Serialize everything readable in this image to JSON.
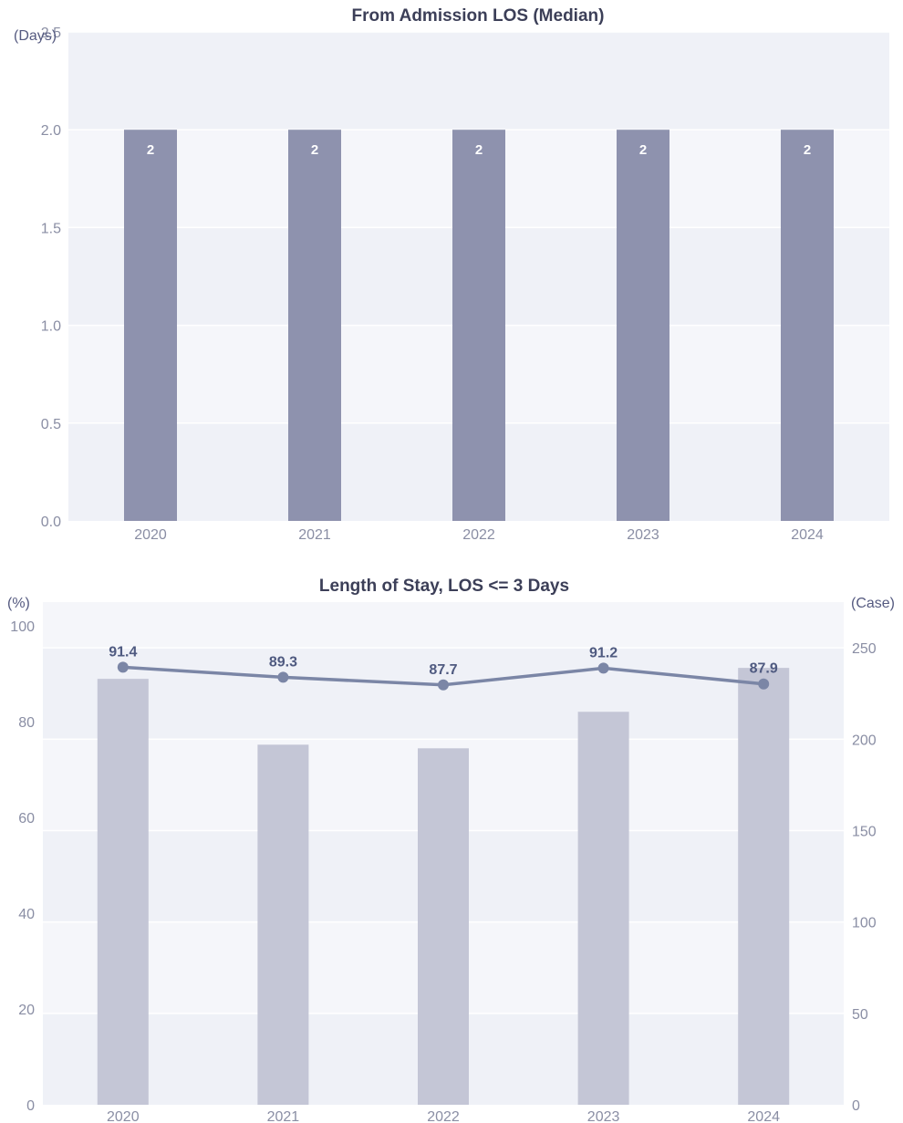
{
  "chart_data": [
    {
      "type": "bar",
      "title": "From Admission LOS (Median)",
      "ylabel": "(Days)",
      "categories": [
        "2020",
        "2021",
        "2022",
        "2023",
        "2024"
      ],
      "values": [
        2,
        2,
        2,
        2,
        2
      ],
      "data_labels": [
        "2",
        "2",
        "2",
        "2",
        "2"
      ],
      "ylim": [
        0,
        2.5
      ],
      "yticks": [
        "0.0",
        "0.5",
        "1.0",
        "1.5",
        "2.0",
        "2.5"
      ],
      "grid": true,
      "colors": {
        "bar": "#8e92ae",
        "plot_bg": "#eff1f7"
      }
    },
    {
      "type": "bar+line",
      "title": "Length of Stay, LOS <= 3 Days",
      "ylabel_left": "(%)",
      "ylabel_right": "(Case)",
      "categories": [
        "2020",
        "2021",
        "2022",
        "2023",
        "2024"
      ],
      "series": [
        {
          "type": "bar",
          "axis": "right",
          "values": [
            233,
            197,
            195,
            215,
            239
          ]
        },
        {
          "type": "line",
          "axis": "left",
          "values": [
            91.4,
            89.3,
            87.7,
            91.2,
            87.9
          ],
          "labels": [
            "91.4",
            "89.3",
            "87.7",
            "91.2",
            "87.9"
          ]
        }
      ],
      "ylim_left": [
        0,
        105
      ],
      "yticks_left": [
        "0",
        "20",
        "40",
        "60",
        "80",
        "100"
      ],
      "ylim_right": [
        0,
        275
      ],
      "yticks_right": [
        "0",
        "50",
        "100",
        "150",
        "200",
        "250"
      ],
      "grid": true,
      "colors": {
        "bar": "#c4c6d6",
        "line": "#7b86a6",
        "marker": "#7b86a6",
        "plot_bg": "#eff1f7"
      }
    }
  ]
}
